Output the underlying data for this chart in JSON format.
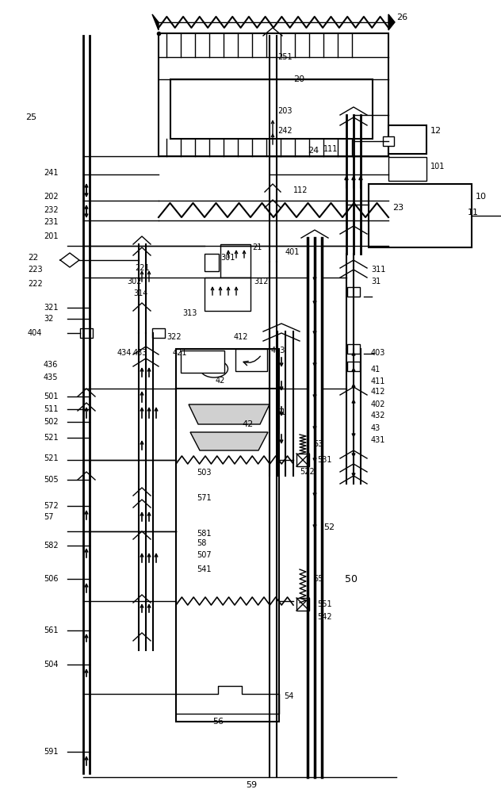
{
  "bg_color": "#ffffff",
  "line_color": "#000000",
  "fig_width": 6.32,
  "fig_height": 10.0,
  "dpi": 100
}
